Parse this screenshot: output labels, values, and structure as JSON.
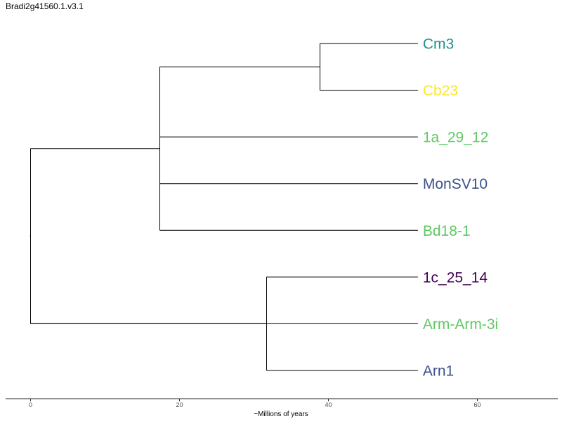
{
  "title": "Bradi2g41560.1.v3.1",
  "x_axis": {
    "label": "~Millions of years",
    "ticks": [
      0,
      20,
      40,
      60
    ],
    "range": [
      -3.3,
      70.9
    ]
  },
  "tips": [
    {
      "name": "Cm3",
      "color": "#21908c",
      "x": 52.1
    },
    {
      "name": "Cb23",
      "color": "#fde725",
      "x": 52.1
    },
    {
      "name": "1a_29_12",
      "color": "#5ec962",
      "x": 52.1
    },
    {
      "name": "MonSV10",
      "color": "#3b528b",
      "x": 52.1
    },
    {
      "name": "Bd18-1",
      "color": "#5ec962",
      "x": 52.1
    },
    {
      "name": "1c_25_14",
      "color": "#440154",
      "x": 52.1
    },
    {
      "name": "Arm-Arm-3i",
      "color": "#5ec962",
      "x": 52.1
    },
    {
      "name": "Arn1",
      "color": "#3b528b",
      "x": 52.1
    }
  ],
  "internal_nodes": [
    {
      "id": "root",
      "x": 0.0,
      "children": [
        "A",
        "B"
      ]
    },
    {
      "id": "A",
      "x": 17.4,
      "children": [
        "C",
        "1a_29_12",
        "MonSV10",
        "Bd18-1"
      ]
    },
    {
      "id": "C",
      "x": 38.9,
      "children": [
        "Cm3",
        "Cb23"
      ]
    },
    {
      "id": "B",
      "x": 31.7,
      "children": [
        "1c_25_14",
        "Arn1"
      ]
    }
  ],
  "extra_branches": [
    {
      "from": "root",
      "to": "Arm-Arm-3i"
    }
  ]
}
